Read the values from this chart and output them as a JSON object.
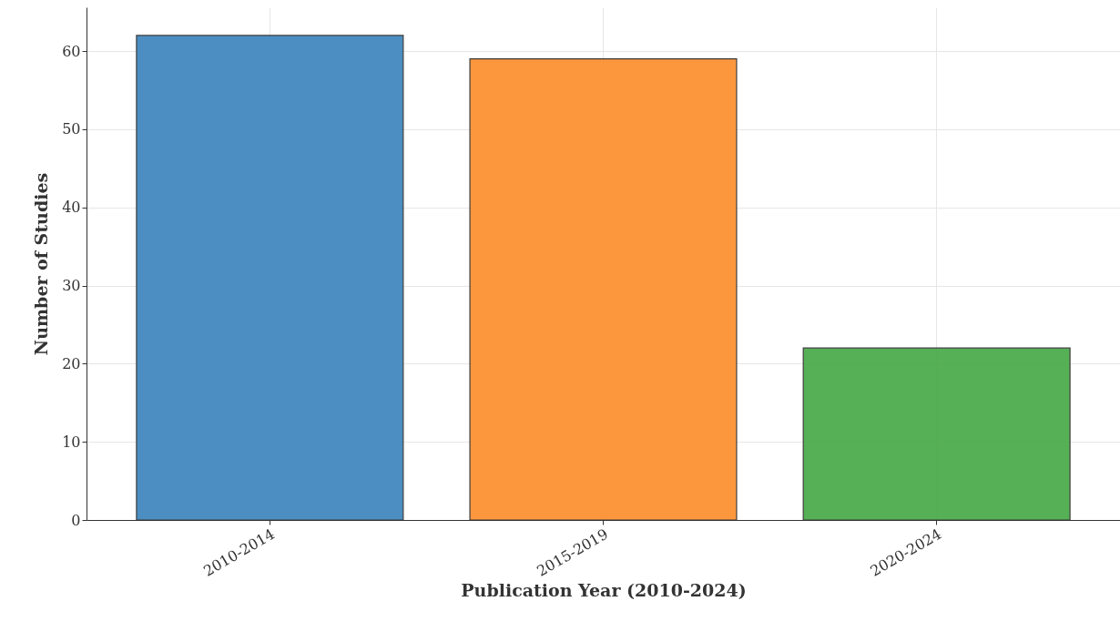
{
  "chart_data": {
    "type": "bar",
    "xlabel": "Publication Year (2010-2024)",
    "ylabel": "Number of Studies",
    "categories": [
      "2010-2014",
      "2015-2019",
      "2020-2024"
    ],
    "values": [
      62,
      59,
      22
    ],
    "colors": [
      "#4389be",
      "#fd9234",
      "#4eac4e"
    ],
    "ylim": [
      0,
      65.6
    ],
    "yticks": [
      0,
      10,
      20,
      30,
      40,
      50,
      60
    ],
    "grid": true
  }
}
